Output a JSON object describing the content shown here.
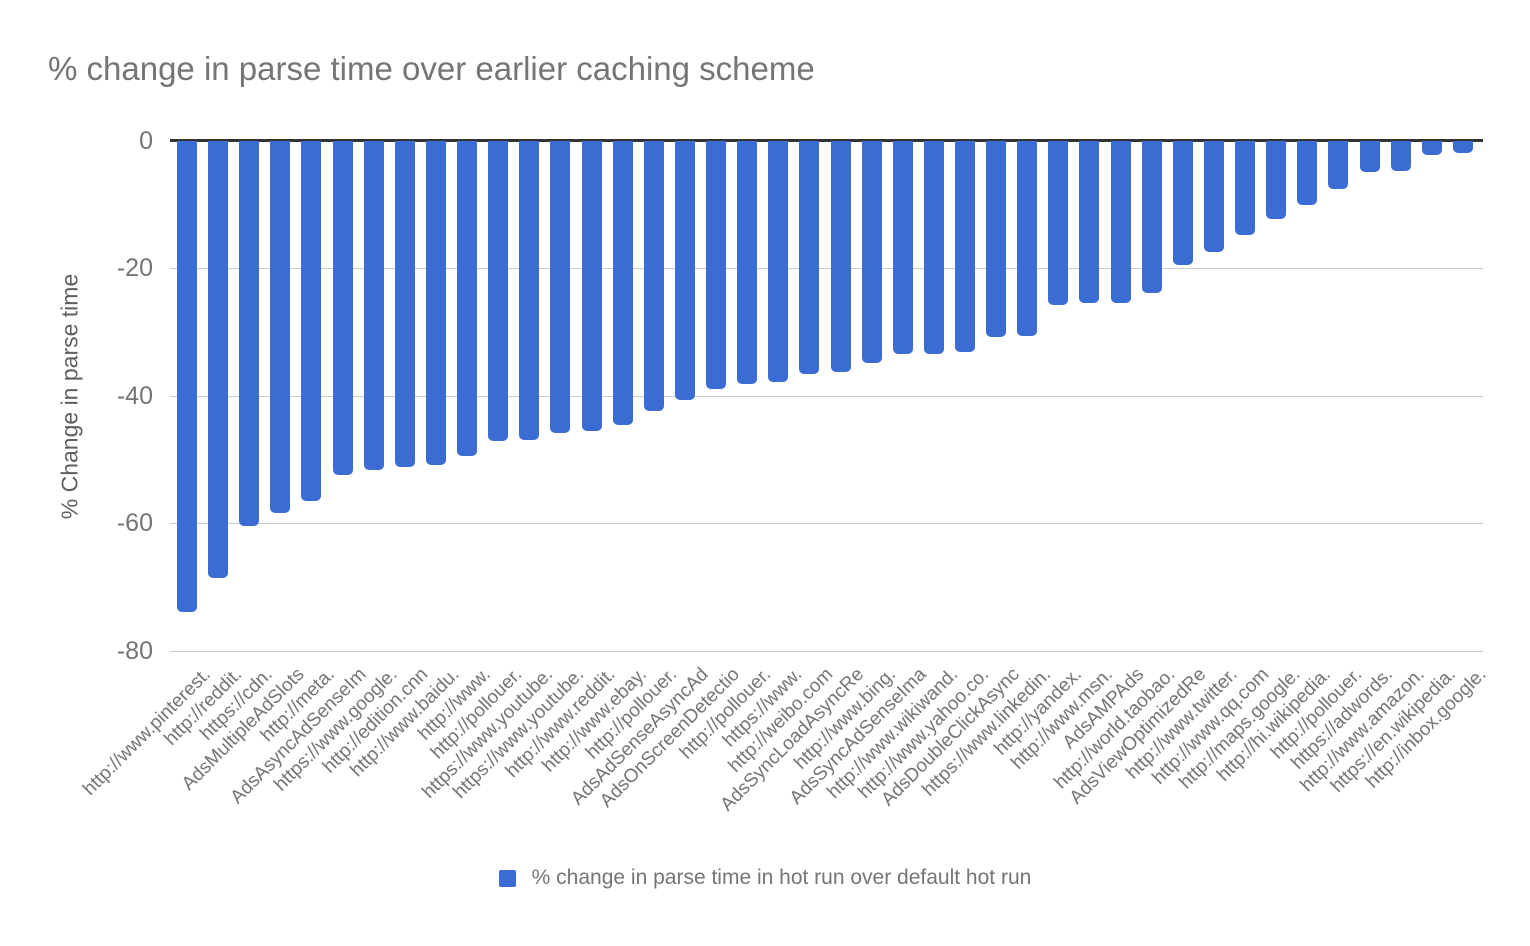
{
  "title": "% change in parse time over earlier caching scheme",
  "y_axis_title": "% Change in parse time",
  "legend": {
    "label": "% change in parse time in hot run over default hot run"
  },
  "colors": {
    "bar": "#3b6cd4",
    "title_text": "#757575",
    "axis_text": "#757575",
    "gridline": "#cccccc",
    "axis_line": "#333333"
  },
  "chart_data": {
    "type": "bar",
    "orientation": "vertical",
    "title": "% change in parse time over earlier caching scheme",
    "xlabel": "",
    "ylabel": "% Change in parse time",
    "ylim": [
      -80,
      0
    ],
    "yticks": [
      0,
      -20,
      -40,
      -60,
      -80
    ],
    "ytick_labels": [
      "0",
      "-20",
      "-40",
      "-60",
      "-80"
    ],
    "grid": true,
    "legend_position": "bottom",
    "legend_entries": [
      "% change in parse time in hot run over default hot run"
    ],
    "categories": [
      "http://www.pinterest.",
      "http://reddit.",
      "https://cdn.",
      "AdsMultipleAdSlots",
      "http://meta.",
      "AdsAsyncAdSenseIm",
      "https://www.google.",
      "http://edition.cnn",
      "http://www.baidu.",
      "http://www.",
      "http://pollouer.",
      "https://www.youtube.",
      "https://www.youtube.",
      "http://www.reddit.",
      "http://www.ebay.",
      "http://pollouer.",
      "AdsAdSenseAsyncAd",
      "AdsOnScreenDetectio",
      "http://pollouer.",
      "https://www.",
      "http://weibo.com",
      "AdsSyncLoadAsyncRe",
      "http://www.bing.",
      "AdsSyncAdSenseIma",
      "http://www.wikiwand.",
      "http://www.yahoo.co.",
      "AdsDoubleClickAsync",
      "https://www.linkedin.",
      "http://yandex.",
      "http://www.msn.",
      "AdsAMPAds",
      "http://world.taobao.",
      "AdsViewOptimizedRe",
      "http://www.twitter.",
      "http://www.qq.com",
      "http://maps.google.",
      "http://hi.wikipedia.",
      "http://pollouer.",
      "https://adwords.",
      "http://www.amazon.",
      "https://en.wikipedia.",
      "http://inbox.google."
    ],
    "values": [
      -74.0,
      -68.6,
      -60.5,
      -58.4,
      -56.6,
      -52.5,
      -51.6,
      -51.2,
      -50.8,
      -49.4,
      -47.1,
      -46.9,
      -45.9,
      -45.5,
      -44.6,
      -42.4,
      -40.6,
      -38.9,
      -38.2,
      -37.9,
      -36.6,
      -36.3,
      -34.8,
      -33.5,
      -33.5,
      -33.1,
      -30.7,
      -30.6,
      -25.7,
      -25.5,
      -25.5,
      -23.9,
      -19.5,
      -17.5,
      -14.7,
      -12.2,
      -10.1,
      -7.6,
      -4.8,
      -4.7,
      -2.2,
      -1.9
    ]
  }
}
